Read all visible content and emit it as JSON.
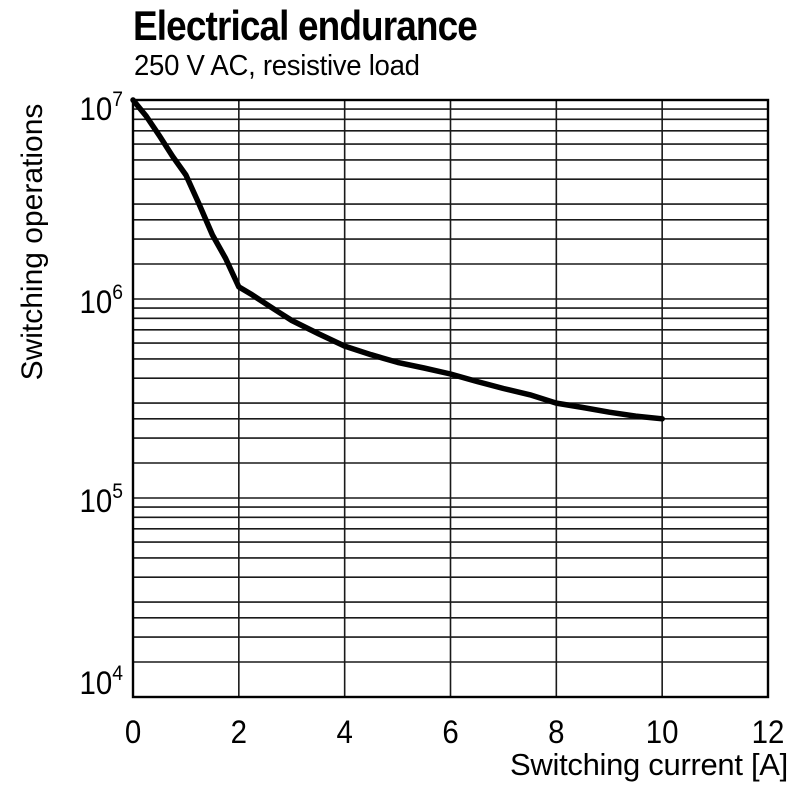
{
  "chart_data": {
    "type": "line",
    "title": "Electrical endurance",
    "subtitle": "250 V AC, resistive load",
    "xlabel": "Switching current [A]",
    "ylabel": "Switching operations",
    "x_axis": {
      "min": 0,
      "max": 12,
      "ticks": [
        0,
        2,
        4,
        6,
        8,
        10,
        12
      ],
      "scale": "linear"
    },
    "y_axis": {
      "scale": "log",
      "min": 10000,
      "max": 10000000,
      "ticks": [
        {
          "base": "10",
          "sup": "7",
          "value": 10000000
        },
        {
          "base": "10",
          "sup": "6",
          "value": 1000000
        },
        {
          "base": "10",
          "sup": "5",
          "value": 100000
        },
        {
          "base": "10",
          "sup": "4",
          "value": 10000
        }
      ],
      "minor_multiples": [
        1.5,
        2,
        2.5,
        3,
        4,
        5,
        6,
        7,
        8,
        9
      ]
    },
    "grid": true,
    "legend": false,
    "series": [
      {
        "name": "250 V AC, resistive load",
        "color": "#000000",
        "points": [
          [
            0,
            10000000
          ],
          [
            0.25,
            8300000
          ],
          [
            0.5,
            6600000
          ],
          [
            0.75,
            5200000
          ],
          [
            1,
            4200000
          ],
          [
            1.25,
            3000000
          ],
          [
            1.5,
            2100000
          ],
          [
            1.75,
            1600000
          ],
          [
            2,
            1150000
          ],
          [
            2.25,
            1050000
          ],
          [
            2.5,
            950000
          ],
          [
            2.75,
            860000
          ],
          [
            3,
            780000
          ],
          [
            3.5,
            670000
          ],
          [
            4,
            580000
          ],
          [
            4.5,
            525000
          ],
          [
            5,
            480000
          ],
          [
            5.5,
            450000
          ],
          [
            6,
            420000
          ],
          [
            6.5,
            385000
          ],
          [
            7,
            355000
          ],
          [
            7.5,
            330000
          ],
          [
            8,
            300000
          ],
          [
            8.5,
            285000
          ],
          [
            9,
            270000
          ],
          [
            9.5,
            258000
          ],
          [
            10,
            250000
          ]
        ]
      }
    ]
  },
  "colors": {
    "background": "#ffffff",
    "grid": "#1a1a1a",
    "border": "#000000",
    "curve": "#000000",
    "text": "#000000"
  }
}
